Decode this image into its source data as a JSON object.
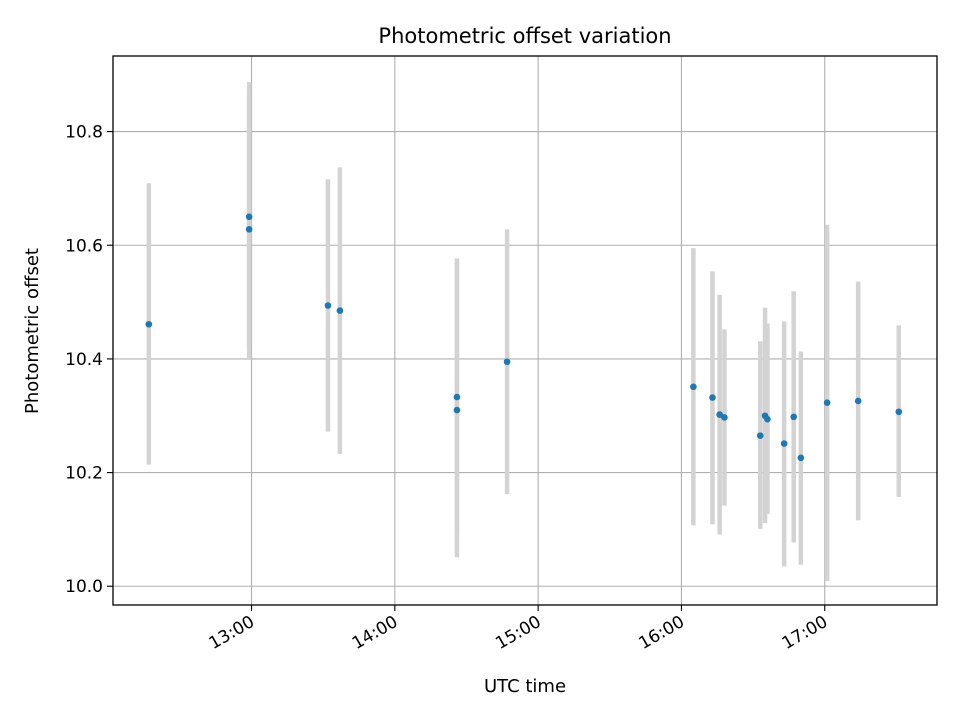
{
  "chart_data": {
    "type": "scatter",
    "title": "Photometric offset variation",
    "xlabel": "UTC time",
    "ylabel": "Photometric offset",
    "x_unit": "UTC time (HH:MM)",
    "xlim": [
      "12:02",
      "17:47"
    ],
    "ylim": [
      9.967,
      10.933
    ],
    "x_ticks": [
      "13:00",
      "14:00",
      "15:00",
      "16:00",
      "17:00"
    ],
    "y_ticks": [
      "10.0",
      "10.2",
      "10.4",
      "10.6",
      "10.8"
    ],
    "grid": true,
    "marker_color": "#1f77b4",
    "errorbar_color": "#d3d3d3",
    "points": [
      {
        "x": "12:17",
        "y": 10.461,
        "y_low": 10.214,
        "y_high": 10.709
      },
      {
        "x": "12:59",
        "y": 10.65,
        "y_low": 10.42,
        "y_high": 10.887
      },
      {
        "x": "12:59",
        "y": 10.628,
        "y_low": 10.398,
        "y_high": 10.86
      },
      {
        "x": "13:32",
        "y": 10.494,
        "y_low": 10.272,
        "y_high": 10.716
      },
      {
        "x": "13:37",
        "y": 10.485,
        "y_low": 10.233,
        "y_high": 10.737
      },
      {
        "x": "14:26",
        "y": 10.333,
        "y_low": 10.092,
        "y_high": 10.577
      },
      {
        "x": "14:26",
        "y": 10.31,
        "y_low": 10.051,
        "y_high": 10.569
      },
      {
        "x": "14:47",
        "y": 10.395,
        "y_low": 10.162,
        "y_high": 10.628
      },
      {
        "x": "16:05",
        "y": 10.351,
        "y_low": 10.107,
        "y_high": 10.595
      },
      {
        "x": "16:13",
        "y": 10.332,
        "y_low": 10.109,
        "y_high": 10.554
      },
      {
        "x": "16:16",
        "y": 10.302,
        "y_low": 10.091,
        "y_high": 10.513
      },
      {
        "x": "16:18",
        "y": 10.297,
        "y_low": 10.142,
        "y_high": 10.452
      },
      {
        "x": "16:33",
        "y": 10.265,
        "y_low": 10.101,
        "y_high": 10.431
      },
      {
        "x": "16:35",
        "y": 10.3,
        "y_low": 10.111,
        "y_high": 10.49
      },
      {
        "x": "16:36",
        "y": 10.294,
        "y_low": 10.127,
        "y_high": 10.462
      },
      {
        "x": "16:43",
        "y": 10.251,
        "y_low": 10.035,
        "y_high": 10.466
      },
      {
        "x": "16:47",
        "y": 10.298,
        "y_low": 10.077,
        "y_high": 10.519
      },
      {
        "x": "16:50",
        "y": 10.226,
        "y_low": 10.038,
        "y_high": 10.413
      },
      {
        "x": "17:01",
        "y": 10.323,
        "y_low": 10.009,
        "y_high": 10.636
      },
      {
        "x": "17:14",
        "y": 10.326,
        "y_low": 10.116,
        "y_high": 10.536
      },
      {
        "x": "17:31",
        "y": 10.307,
        "y_low": 10.157,
        "y_high": 10.459
      }
    ]
  }
}
